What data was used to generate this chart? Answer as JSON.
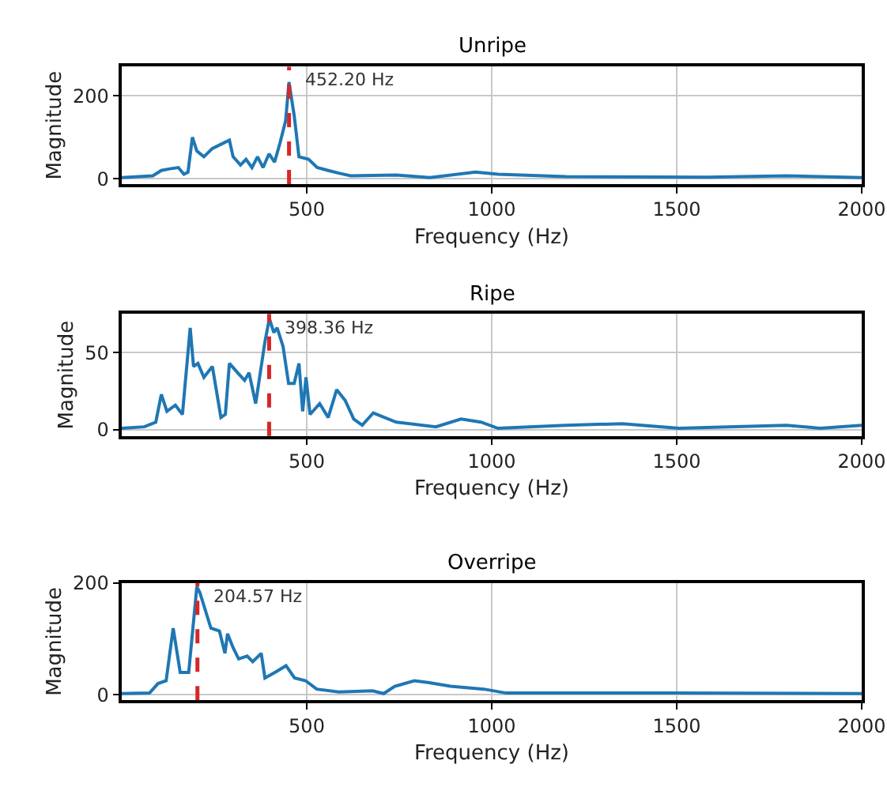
{
  "chart_data": [
    {
      "type": "line",
      "title": "Unripe",
      "xlabel": "Frequency (Hz)",
      "ylabel": "Magnitude",
      "xlim": [
        0,
        2000
      ],
      "xticks": [
        500,
        1000,
        1500,
        2000
      ],
      "ylim": [
        -13,
        270
      ],
      "yticks": [
        0,
        200
      ],
      "grid": true,
      "line_style": "solid",
      "series": [
        {
          "color": "#1f77b4",
          "x": [
            0,
            84,
            107,
            130,
            153,
            168,
            179,
            191,
            203,
            222,
            245,
            268,
            291,
            301,
            321,
            336,
            352,
            367,
            382,
            398,
            413,
            428,
            443,
            452,
            466,
            479,
            505,
            528,
            558,
            589,
            619,
            742,
            833,
            956,
            1017,
            1200,
            1583,
            1797,
            2000
          ],
          "values": [
            3,
            7,
            20,
            24,
            27,
            11,
            16,
            100,
            67,
            53,
            73,
            83,
            93,
            53,
            33,
            47,
            27,
            53,
            27,
            60,
            40,
            87,
            140,
            233,
            153,
            53,
            47,
            27,
            20,
            13,
            7,
            9,
            3,
            16,
            11,
            5,
            4,
            7,
            3
          ]
        }
      ],
      "ref_lines": [
        {
          "axis": "x",
          "value": 452.2,
          "label": "452.20 Hz",
          "color": "#d62728",
          "line_style": "dashed"
        }
      ]
    },
    {
      "type": "line",
      "title": "Ripe",
      "xlabel": "Frequency (Hz)",
      "ylabel": "Magnitude",
      "xlim": [
        0,
        2000
      ],
      "xticks": [
        500,
        1000,
        1500,
        2000
      ],
      "ylim": [
        -4,
        75
      ],
      "yticks": [
        0,
        50
      ],
      "grid": true,
      "line_style": "solid",
      "series": [
        {
          "color": "#1f77b4",
          "x": [
            0,
            61,
            92,
            107,
            122,
            145,
            164,
            185,
            194,
            206,
            222,
            245,
            268,
            280,
            291,
            313,
            332,
            344,
            362,
            387,
            399,
            411,
            420,
            436,
            451,
            466,
            479,
            489,
            498,
            509,
            535,
            558,
            581,
            604,
            627,
            650,
            680,
            742,
            849,
            917,
            971,
            1017,
            1200,
            1353,
            1506,
            1659,
            1797,
            1888,
            2000
          ],
          "values": [
            1,
            2,
            5,
            23,
            12,
            16,
            10,
            66,
            41,
            43,
            34,
            41,
            8,
            10,
            43,
            37,
            32,
            37,
            17,
            57,
            72,
            63,
            66,
            54,
            30,
            30,
            43,
            12,
            34,
            10,
            17,
            8,
            26,
            19,
            7,
            3,
            11,
            5,
            2,
            7,
            5,
            1,
            3,
            4,
            1,
            2,
            3,
            1,
            3
          ]
        }
      ],
      "ref_lines": [
        {
          "axis": "x",
          "value": 398.36,
          "label": "398.36 Hz",
          "color": "#d62728",
          "line_style": "dashed"
        }
      ]
    },
    {
      "type": "line",
      "title": "Overripe",
      "xlabel": "Frequency (Hz)",
      "ylabel": "Magnitude",
      "xlim": [
        0,
        2000
      ],
      "xticks": [
        500,
        1000,
        1500,
        2000
      ],
      "ylim": [
        -10,
        200
      ],
      "yticks": [
        0,
        200
      ],
      "grid": true,
      "line_style": "solid",
      "series": [
        {
          "color": "#1f77b4",
          "x": [
            0,
            75,
            98,
            120,
            139,
            158,
            181,
            203,
            211,
            241,
            264,
            279,
            286,
            301,
            316,
            339,
            354,
            377,
            387,
            414,
            444,
            467,
            497,
            527,
            587,
            678,
            708,
            738,
            791,
            828,
            889,
            979,
            1039,
            1491,
            2000
          ],
          "values": [
            2,
            3,
            20,
            25,
            119,
            40,
            40,
            193,
            183,
            119,
            114,
            74,
            109,
            84,
            64,
            69,
            59,
            74,
            30,
            40,
            52,
            30,
            25,
            10,
            5,
            7,
            2,
            15,
            25,
            22,
            15,
            10,
            3,
            3,
            2
          ]
        }
      ],
      "ref_lines": [
        {
          "axis": "x",
          "value": 204.57,
          "label": "204.57 Hz",
          "color": "#d62728",
          "line_style": "dashed"
        }
      ]
    }
  ]
}
